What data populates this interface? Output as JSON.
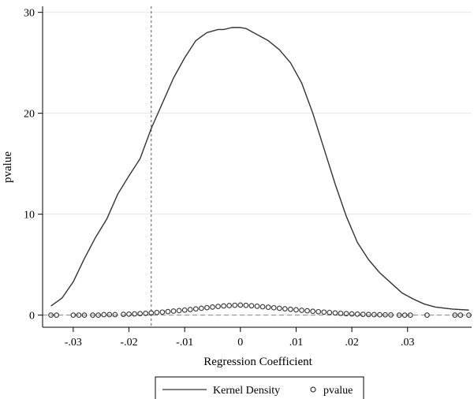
{
  "chart_data": {
    "type": "line",
    "title": "",
    "xlabel": "Regression Coefficient",
    "ylabel": "pvalue",
    "xlim": [
      -0.0355,
      0.0415
    ],
    "ylim": [
      -1.2,
      30.6
    ],
    "x_ticks": [
      -0.03,
      -0.02,
      -0.01,
      0,
      0.01,
      0.02,
      0.03
    ],
    "x_tick_labels": [
      "-.03",
      "-.02",
      "-.01",
      "0",
      ".01",
      ".02",
      ".03"
    ],
    "y_ticks": [
      0,
      10,
      20,
      30
    ],
    "y_tick_labels": [
      "0",
      "10",
      "20",
      "30"
    ],
    "grid": "horizontal",
    "reference_lines": [
      {
        "axis": "x",
        "value": -0.016,
        "style": "dashed"
      },
      {
        "axis": "y",
        "value": 0,
        "style": "dashed"
      }
    ],
    "legend": {
      "position": "bottom",
      "entries": [
        "Kernel Density",
        "pvalue"
      ]
    },
    "series": [
      {
        "name": "Kernel Density",
        "kind": "line",
        "color": "#333333",
        "points": [
          [
            -0.034,
            0.9
          ],
          [
            -0.032,
            1.7
          ],
          [
            -0.03,
            3.3
          ],
          [
            -0.028,
            5.6
          ],
          [
            -0.026,
            7.7
          ],
          [
            -0.024,
            9.5
          ],
          [
            -0.022,
            12.0
          ],
          [
            -0.02,
            13.8
          ],
          [
            -0.018,
            15.5
          ],
          [
            -0.016,
            18.5
          ],
          [
            -0.014,
            21.0
          ],
          [
            -0.012,
            23.5
          ],
          [
            -0.01,
            25.5
          ],
          [
            -0.008,
            27.2
          ],
          [
            -0.006,
            28.0
          ],
          [
            -0.004,
            28.3
          ],
          [
            -0.003,
            28.3
          ],
          [
            -0.0015,
            28.5
          ],
          [
            0.0,
            28.5
          ],
          [
            0.001,
            28.4
          ],
          [
            0.003,
            27.8
          ],
          [
            0.005,
            27.2
          ],
          [
            0.007,
            26.3
          ],
          [
            0.009,
            25.0
          ],
          [
            0.011,
            23.0
          ],
          [
            0.013,
            20.0
          ],
          [
            0.015,
            16.5
          ],
          [
            0.017,
            13.0
          ],
          [
            0.019,
            9.8
          ],
          [
            0.021,
            7.2
          ],
          [
            0.023,
            5.5
          ],
          [
            0.025,
            4.2
          ],
          [
            0.027,
            3.2
          ],
          [
            0.029,
            2.2
          ],
          [
            0.031,
            1.6
          ],
          [
            0.033,
            1.1
          ],
          [
            0.035,
            0.8
          ],
          [
            0.038,
            0.6
          ],
          [
            0.041,
            0.5
          ]
        ]
      },
      {
        "name": "pvalue",
        "kind": "scatter",
        "color": "#333333",
        "points": [
          [
            -0.034,
            0.0
          ],
          [
            -0.033,
            0.0
          ],
          [
            -0.03,
            0.0
          ],
          [
            -0.029,
            0.0
          ],
          [
            -0.028,
            0.0
          ],
          [
            -0.0265,
            0.0
          ],
          [
            -0.0255,
            0.0
          ],
          [
            -0.0245,
            0.05
          ],
          [
            -0.0235,
            0.05
          ],
          [
            -0.0225,
            0.05
          ],
          [
            -0.021,
            0.08
          ],
          [
            -0.02,
            0.1
          ],
          [
            -0.019,
            0.12
          ],
          [
            -0.018,
            0.15
          ],
          [
            -0.017,
            0.18
          ],
          [
            -0.016,
            0.22
          ],
          [
            -0.015,
            0.26
          ],
          [
            -0.014,
            0.3
          ],
          [
            -0.013,
            0.35
          ],
          [
            -0.012,
            0.4
          ],
          [
            -0.011,
            0.45
          ],
          [
            -0.01,
            0.5
          ],
          [
            -0.009,
            0.56
          ],
          [
            -0.008,
            0.62
          ],
          [
            -0.007,
            0.68
          ],
          [
            -0.006,
            0.74
          ],
          [
            -0.005,
            0.8
          ],
          [
            -0.004,
            0.86
          ],
          [
            -0.003,
            0.91
          ],
          [
            -0.002,
            0.95
          ],
          [
            -0.001,
            0.98
          ],
          [
            0.0,
            1.0
          ],
          [
            0.001,
            0.97
          ],
          [
            0.002,
            0.93
          ],
          [
            0.003,
            0.88
          ],
          [
            0.004,
            0.83
          ],
          [
            0.005,
            0.78
          ],
          [
            0.006,
            0.73
          ],
          [
            0.007,
            0.68
          ],
          [
            0.008,
            0.63
          ],
          [
            0.009,
            0.58
          ],
          [
            0.01,
            0.53
          ],
          [
            0.011,
            0.48
          ],
          [
            0.012,
            0.43
          ],
          [
            0.013,
            0.38
          ],
          [
            0.014,
            0.34
          ],
          [
            0.015,
            0.3
          ],
          [
            0.016,
            0.26
          ],
          [
            0.017,
            0.22
          ],
          [
            0.018,
            0.18
          ],
          [
            0.019,
            0.15
          ],
          [
            0.02,
            0.12
          ],
          [
            0.021,
            0.1
          ],
          [
            0.022,
            0.08
          ],
          [
            0.023,
            0.06
          ],
          [
            0.024,
            0.05
          ],
          [
            0.025,
            0.04
          ],
          [
            0.026,
            0.03
          ],
          [
            0.027,
            0.02
          ],
          [
            0.0285,
            0.0
          ],
          [
            0.0295,
            0.0
          ],
          [
            0.0305,
            0.0
          ],
          [
            0.0335,
            0.0
          ],
          [
            0.0385,
            0.0
          ],
          [
            0.0395,
            0.0
          ],
          [
            0.041,
            0.0
          ]
        ]
      }
    ]
  }
}
